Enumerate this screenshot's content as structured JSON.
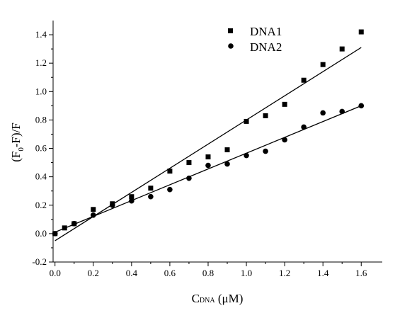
{
  "chart_data": {
    "type": "scatter",
    "xlabel": {
      "main": "C",
      "sub": "DNA",
      "unit": " (μM)"
    },
    "ylabel": {
      "pre": "(F",
      "sub": "0",
      "post": "-F)/F"
    },
    "xlim": [
      -0.01,
      1.71
    ],
    "ylim": [
      -0.2,
      1.5
    ],
    "x_ticks": [
      0.0,
      0.2,
      0.4,
      0.6,
      0.8,
      1.0,
      1.2,
      1.4,
      1.6
    ],
    "x_tick_labels": [
      "0.0",
      "0.2",
      "0.4",
      "0.6",
      "0.8",
      "1.0",
      "1.2",
      "1.4",
      "1.6"
    ],
    "y_ticks": [
      -0.2,
      0.0,
      0.2,
      0.4,
      0.6,
      0.8,
      1.0,
      1.2,
      1.4
    ],
    "y_tick_labels": [
      "-0.2",
      "0.0",
      "0.2",
      "0.4",
      "0.6",
      "0.8",
      "1.0",
      "1.2",
      "1.4"
    ],
    "x_minor_step": 0.1,
    "y_minor_step": 0.1,
    "grid": false,
    "legend_position": "top-right",
    "series": [
      {
        "name": "DNA1",
        "marker": "square",
        "color": "#000000",
        "points": [
          [
            0.0,
            0.0
          ],
          [
            0.05,
            0.04
          ],
          [
            0.1,
            0.07
          ],
          [
            0.2,
            0.17
          ],
          [
            0.3,
            0.21
          ],
          [
            0.4,
            0.26
          ],
          [
            0.5,
            0.32
          ],
          [
            0.6,
            0.44
          ],
          [
            0.7,
            0.5
          ],
          [
            0.8,
            0.54
          ],
          [
            0.9,
            0.59
          ],
          [
            1.0,
            0.79
          ],
          [
            1.1,
            0.83
          ],
          [
            1.2,
            0.91
          ],
          [
            1.3,
            1.08
          ],
          [
            1.4,
            1.19
          ],
          [
            1.5,
            1.3
          ],
          [
            1.6,
            1.42
          ]
        ],
        "fit": {
          "x": [
            0.0,
            1.6
          ],
          "y": [
            -0.05,
            1.31
          ]
        }
      },
      {
        "name": "DNA2",
        "marker": "circle",
        "color": "#000000",
        "points": [
          [
            0.0,
            0.0
          ],
          [
            0.1,
            0.07
          ],
          [
            0.2,
            0.13
          ],
          [
            0.3,
            0.2
          ],
          [
            0.4,
            0.23
          ],
          [
            0.5,
            0.26
          ],
          [
            0.6,
            0.31
          ],
          [
            0.7,
            0.39
          ],
          [
            0.8,
            0.48
          ],
          [
            0.9,
            0.49
          ],
          [
            1.0,
            0.55
          ],
          [
            1.1,
            0.58
          ],
          [
            1.2,
            0.66
          ],
          [
            1.3,
            0.75
          ],
          [
            1.4,
            0.85
          ],
          [
            1.5,
            0.86
          ],
          [
            1.6,
            0.9
          ]
        ],
        "fit": {
          "x": [
            0.0,
            1.6
          ],
          "y": [
            0.01,
            0.9
          ]
        }
      }
    ]
  }
}
